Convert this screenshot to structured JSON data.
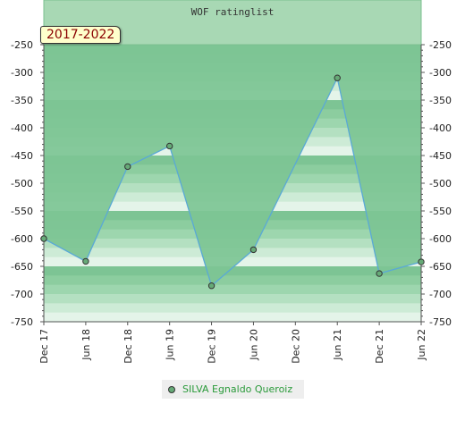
{
  "chart_data": {
    "type": "line",
    "title": "WOF ratinglist",
    "badge": "2017-2022",
    "categories": [
      "Dec 17",
      "Jun 18",
      "Dec 18",
      "Jun 19",
      "Dec 19",
      "Jun 20",
      "Dec 20",
      "Jun 21",
      "Dec 21",
      "Jun 22"
    ],
    "ylim": [
      -750,
      -250
    ],
    "yticks": [
      -250,
      -300,
      -350,
      -400,
      -450,
      -500,
      -550,
      -600,
      -650,
      -700,
      -750
    ],
    "series": [
      {
        "name": "SILVA Egnaldo Queroiz",
        "points": [
          {
            "x": 0,
            "y": -600
          },
          {
            "x": 1,
            "y": -641
          },
          {
            "x": 2,
            "y": -470
          },
          {
            "x": 3,
            "y": -433
          },
          {
            "x": 4,
            "y": -685
          },
          {
            "x": 5,
            "y": -620
          },
          {
            "x": 7,
            "y": -310
          },
          {
            "x": 8,
            "y": -663
          },
          {
            "x": 9,
            "y": -642
          }
        ]
      }
    ],
    "colors": {
      "line": "#5aa9d6",
      "marker": "#66aa77",
      "fill": "#7dc494",
      "title_band": "#a8d8b4",
      "legend_text": "#2a9a3a"
    },
    "legend": "bottom-center",
    "grid": false
  }
}
